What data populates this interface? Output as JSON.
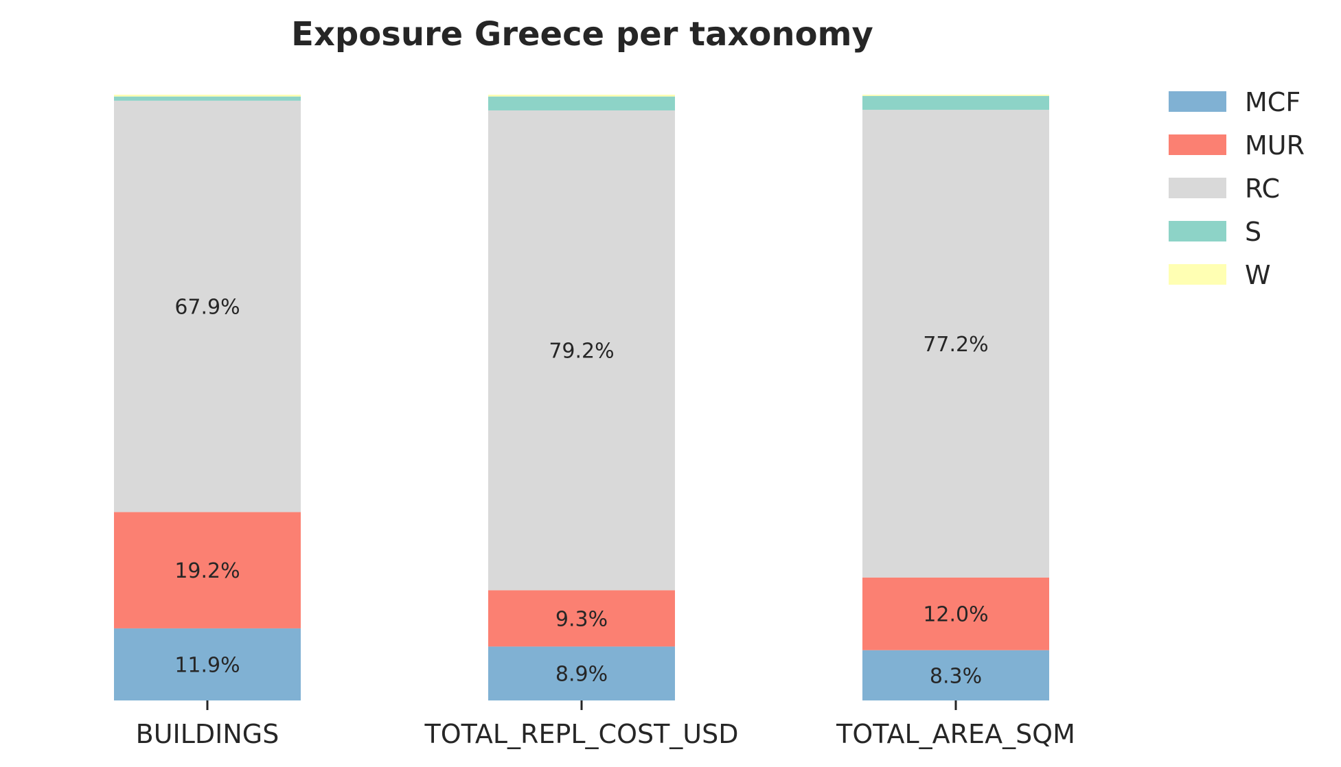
{
  "chart_data": {
    "type": "bar",
    "stacked": true,
    "normalized": true,
    "title": "Exposure Greece per taxonomy",
    "xlabel": "",
    "ylabel": "",
    "ylim": [
      0,
      100
    ],
    "grid": false,
    "legend_position": "right",
    "categories": [
      "BUILDINGS",
      "TOTAL_REPL_COST_USD",
      "TOTAL_AREA_SQM"
    ],
    "series": [
      {
        "name": "MCF",
        "color": "#80b1d3",
        "values": [
          11.9,
          8.9,
          8.3
        ],
        "labels": [
          "11.9%",
          "8.9%",
          "8.3%"
        ]
      },
      {
        "name": "MUR",
        "color": "#fb8072",
        "values": [
          19.2,
          9.3,
          12.0
        ],
        "labels": [
          "19.2%",
          "9.3%",
          "12.0%"
        ]
      },
      {
        "name": "RC",
        "color": "#d9d9d9",
        "values": [
          67.9,
          79.2,
          77.2
        ],
        "labels": [
          "67.9%",
          "79.2%",
          "77.2%"
        ]
      },
      {
        "name": "S",
        "color": "#8dd3c7",
        "values": [
          0.7,
          2.3,
          2.3
        ],
        "labels": [
          "",
          "",
          ""
        ]
      },
      {
        "name": "W",
        "color": "#ffffb3",
        "values": [
          0.3,
          0.3,
          0.2
        ],
        "labels": [
          "",
          "",
          ""
        ]
      }
    ]
  }
}
